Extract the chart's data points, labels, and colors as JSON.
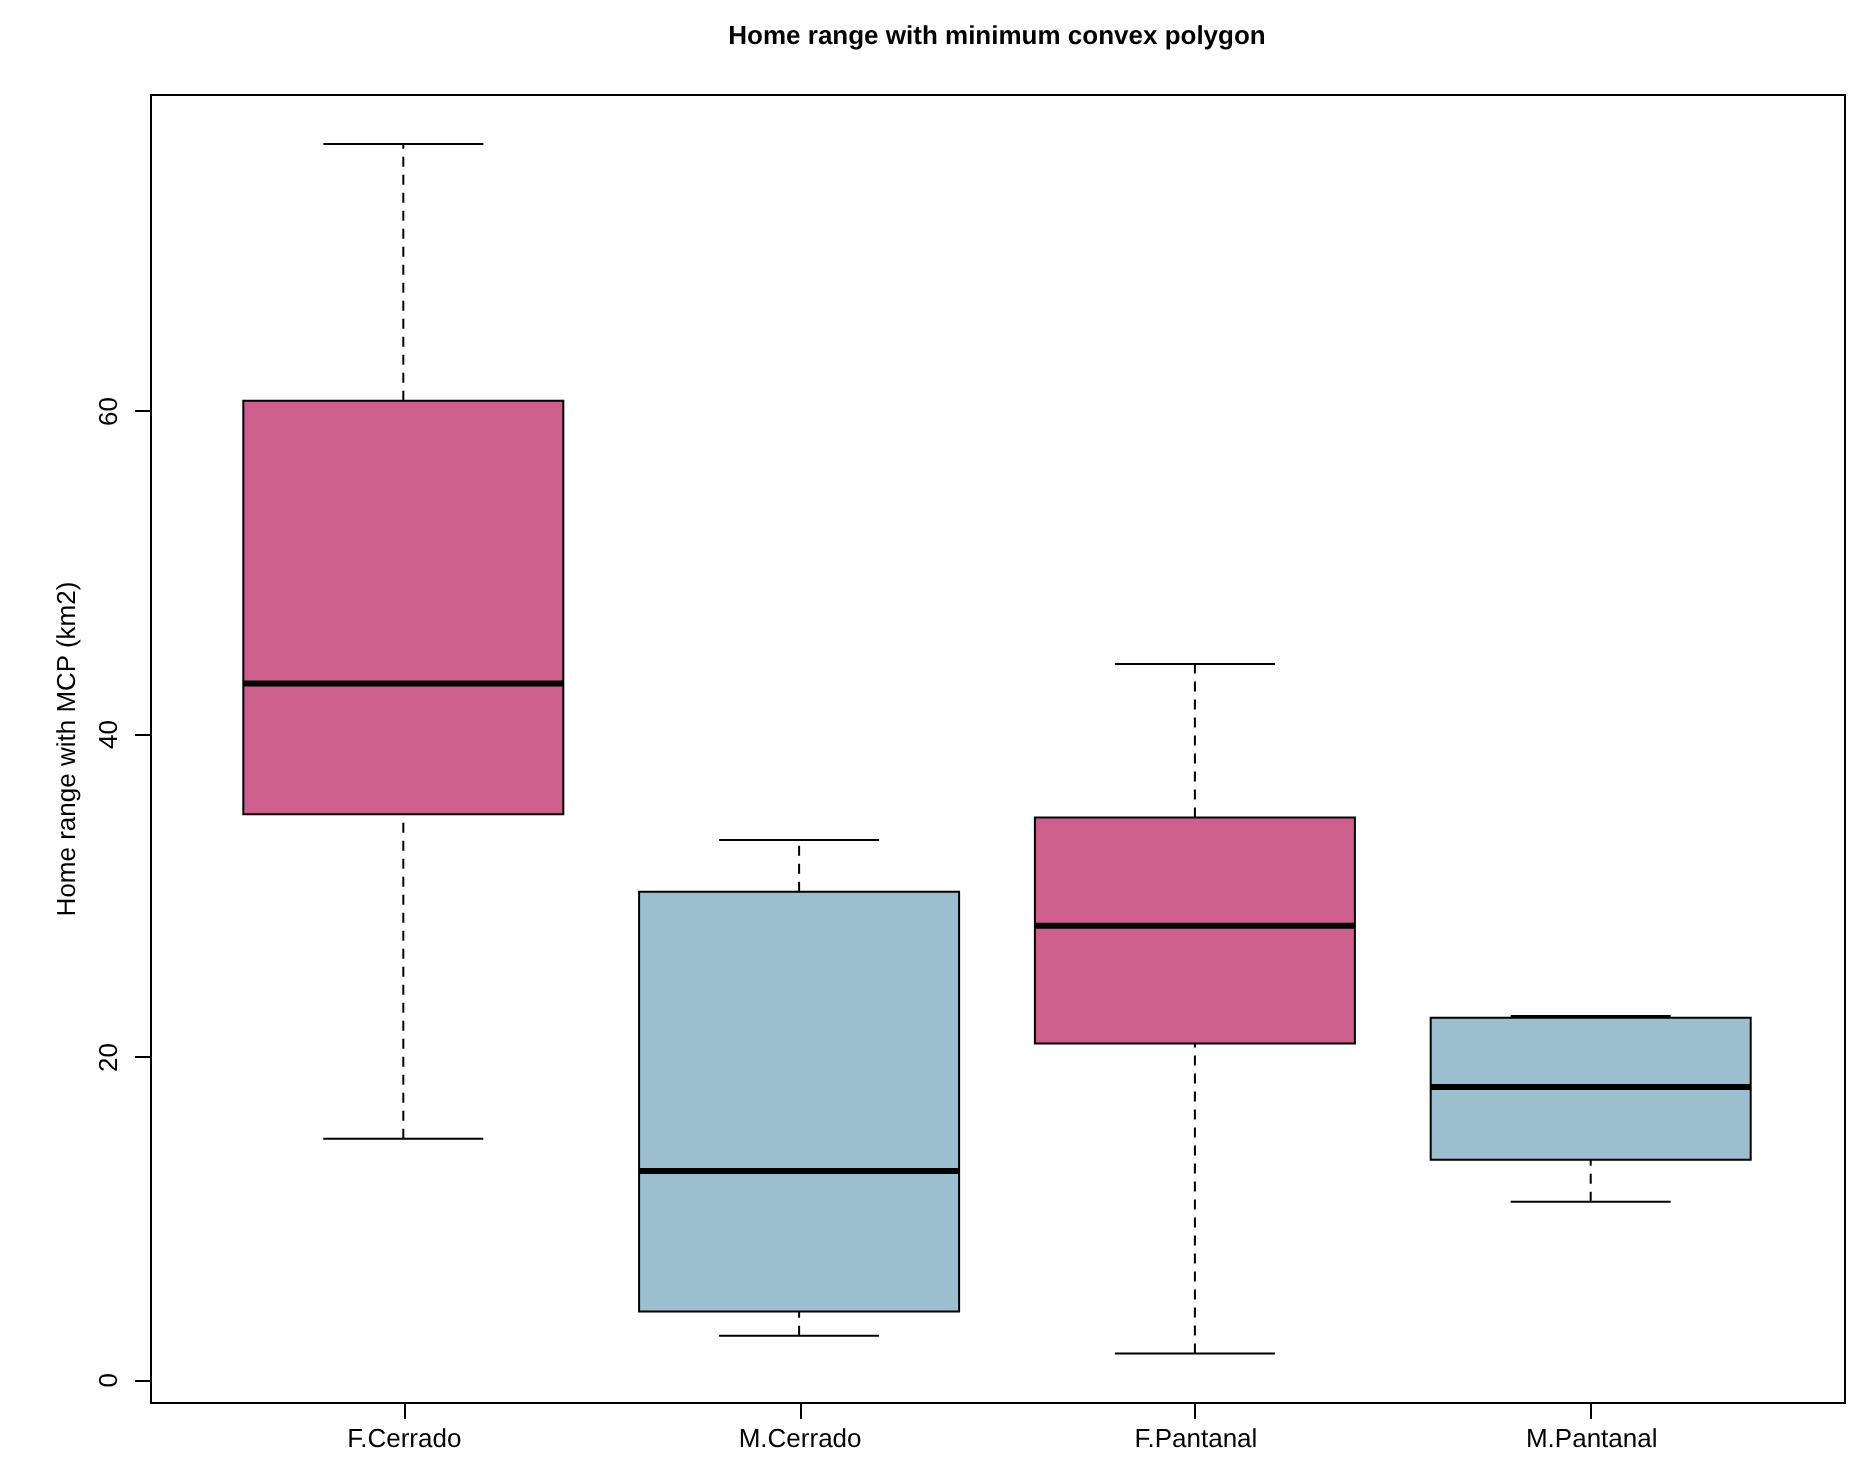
{
  "chart_data": {
    "type": "box",
    "title": "Home range with minimum convex polygon",
    "ylabel": "Home range with MCP (km2)",
    "categories": [
      "F.Cerrado",
      "M.Cerrado",
      "F.Pantanal",
      "M.Pantanal"
    ],
    "colors": [
      "#cd5f8d",
      "#9bbfcf",
      "#cd5f8d",
      "#9bbfcf"
    ],
    "boxes": [
      {
        "low": 14.9,
        "q1": 35.0,
        "median": 43.1,
        "q3": 60.6,
        "high": 76.5
      },
      {
        "low": 2.7,
        "q1": 4.2,
        "median": 12.9,
        "q3": 30.2,
        "high": 33.4
      },
      {
        "low": 1.6,
        "q1": 20.8,
        "median": 28.1,
        "q3": 34.8,
        "high": 44.3
      },
      {
        "low": 11.0,
        "q1": 13.6,
        "median": 18.1,
        "q3": 22.4,
        "high": 22.5
      }
    ],
    "ylim": [
      -1.4,
      79.6
    ],
    "yticks": [
      0,
      20,
      40,
      60
    ],
    "grid": false
  }
}
